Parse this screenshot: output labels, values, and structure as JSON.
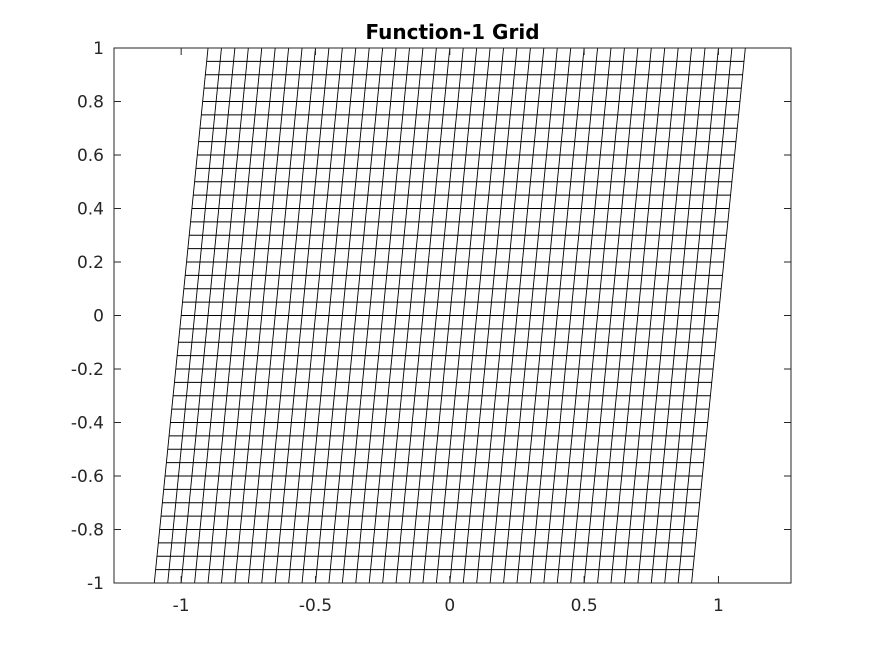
{
  "chart_data": {
    "type": "line",
    "title": "Function-1 Grid",
    "xlabel": "",
    "ylabel": "",
    "xlim": [
      -1.25,
      1.27
    ],
    "ylim": [
      -1,
      1
    ],
    "x_ticks": [
      -1,
      -0.5,
      0,
      0.5,
      1
    ],
    "x_tick_labels": [
      "-1",
      "-0.5",
      "0",
      "0.5",
      "1"
    ],
    "y_ticks": [
      -1,
      -0.8,
      -0.6,
      -0.4,
      -0.2,
      0,
      0.2,
      0.4,
      0.6,
      0.8,
      1
    ],
    "y_tick_labels": [
      "-1",
      "-0.8",
      "-0.6",
      "-0.4",
      "-0.2",
      "0",
      "0.2",
      "0.4",
      "0.6",
      "0.8",
      "1"
    ],
    "grid": false,
    "line_color": "#000000",
    "axes_color": "#262626",
    "mapping": {
      "description_x": "x' = x + 0.1*y",
      "x_range": [
        -1,
        1
      ],
      "y_range": [
        -1,
        1
      ],
      "x_lines": 41,
      "y_lines": 41,
      "shear": 0.1
    }
  }
}
